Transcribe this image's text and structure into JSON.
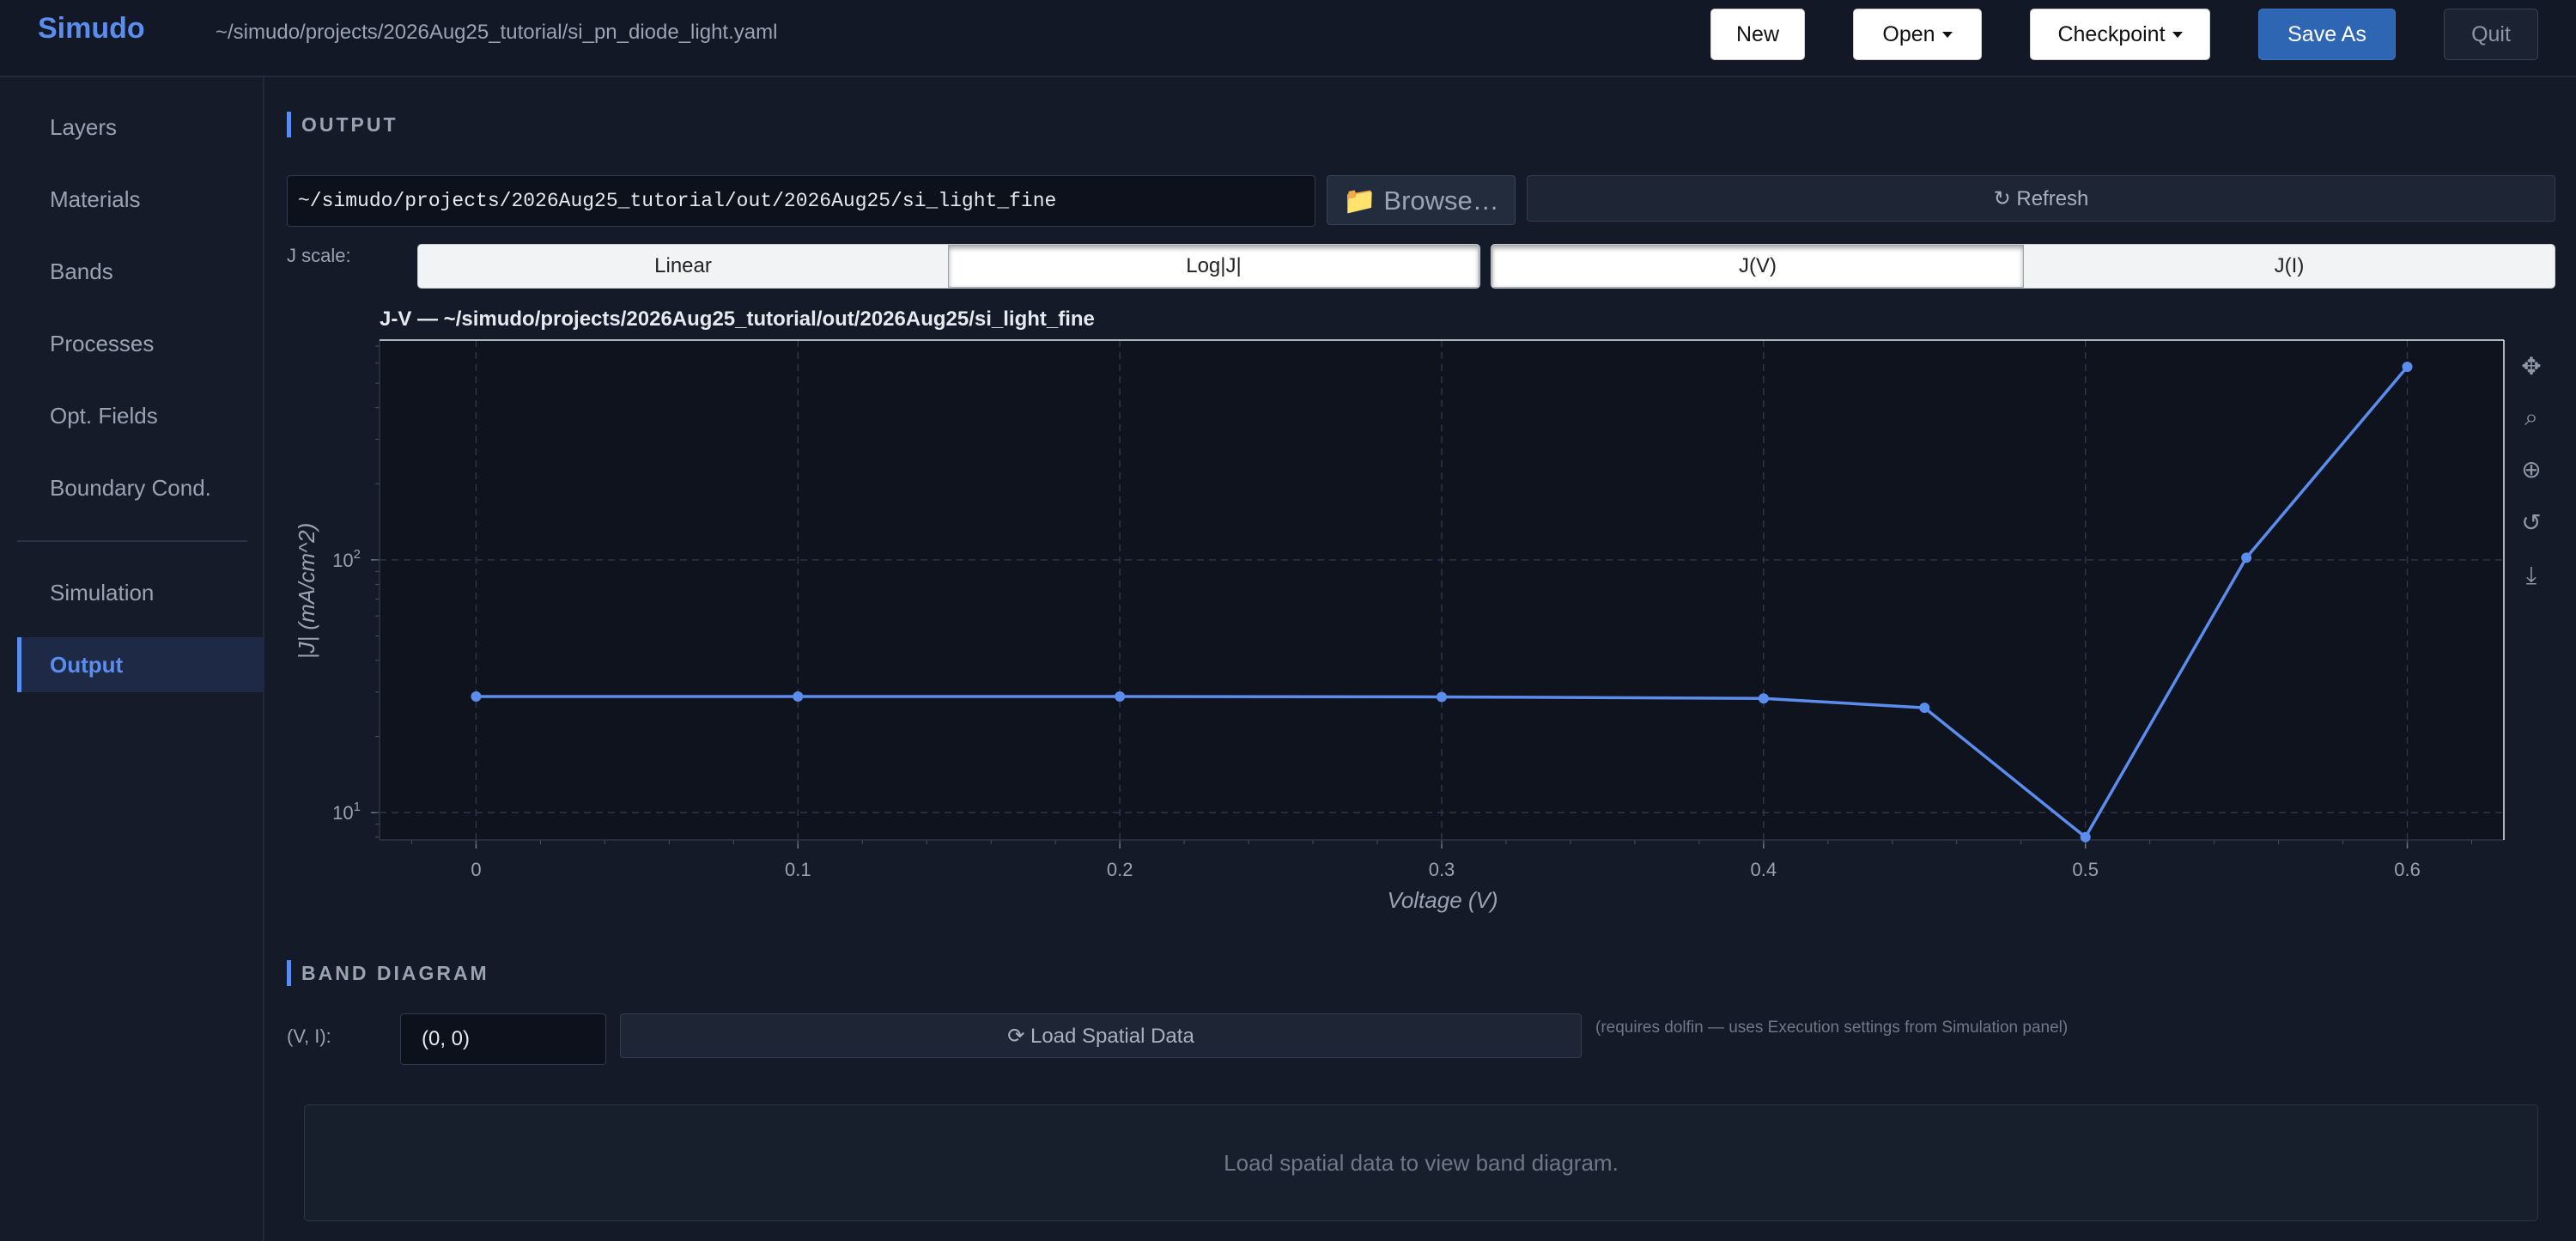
{
  "header": {
    "brand": "Simudo",
    "file_path": "~/simudo/projects/2026Aug25_tutorial/si_pn_diode_light.yaml",
    "buttons": {
      "new": "New",
      "open": "Open",
      "checkpoint": "Checkpoint",
      "save_as": "Save As",
      "quit": "Quit"
    }
  },
  "sidebar": {
    "items": [
      {
        "label": "Layers",
        "active": false
      },
      {
        "label": "Materials",
        "active": false
      },
      {
        "label": "Bands",
        "active": false
      },
      {
        "label": "Processes",
        "active": false
      },
      {
        "label": "Opt. Fields",
        "active": false
      },
      {
        "label": "Boundary Cond.",
        "active": false
      },
      {
        "label": "Simulation",
        "active": false
      },
      {
        "label": "Output",
        "active": true
      }
    ]
  },
  "output": {
    "section_title": "OUTPUT",
    "path_value": "~/simudo/projects/2026Aug25_tutorial/out/2026Aug25/si_light_fine",
    "browse_label": "📁 Browse…",
    "refresh_label": "↻ Refresh",
    "jscale_label": "J scale:",
    "scale_options": [
      "Linear",
      "Log|J|"
    ],
    "scale_selected": "Log|J|",
    "plot_options": [
      "J(V)",
      "J(I)"
    ],
    "plot_selected": "J(V)"
  },
  "chart_data": {
    "type": "line",
    "title": "J-V — ~/simudo/projects/2026Aug25_tutorial/out/2026Aug25/si_light_fine",
    "xlabel": "Voltage (V)",
    "ylabel": "|J| (mA/cm^2)",
    "y_scale": "log",
    "xlim": [
      -0.03,
      0.63
    ],
    "ylim": [
      7.8,
      740
    ],
    "x_ticks": [
      "0",
      "0.1",
      "0.2",
      "0.3",
      "0.4",
      "0.5",
      "0.6"
    ],
    "y_ticks": [
      {
        "base": "10",
        "exp": "1",
        "value": 10
      },
      {
        "base": "10",
        "exp": "2",
        "value": 100
      }
    ],
    "grid": true,
    "color": "#5b8def",
    "series": [
      {
        "x": [
          0,
          0.1,
          0.2,
          0.3,
          0.4,
          0.45,
          0.5,
          0.55,
          0.6
        ],
        "y": [
          28.8,
          28.8,
          28.8,
          28.7,
          28.3,
          26.0,
          8.0,
          102,
          580
        ]
      }
    ]
  },
  "modebar": {
    "icons": [
      "pan-icon",
      "zoom-icon",
      "autoscale-icon",
      "reset-axes-icon",
      "download-icon"
    ]
  },
  "band": {
    "section_title": "BAND DIAGRAM",
    "vi_label": "(V, I):",
    "vi_value": "(0, 0)",
    "load_label": "⟳ Load Spatial Data",
    "hint": "(requires dolfin — uses Execution settings from Simulation panel)",
    "placeholder": "Load spatial data to view band diagram."
  }
}
